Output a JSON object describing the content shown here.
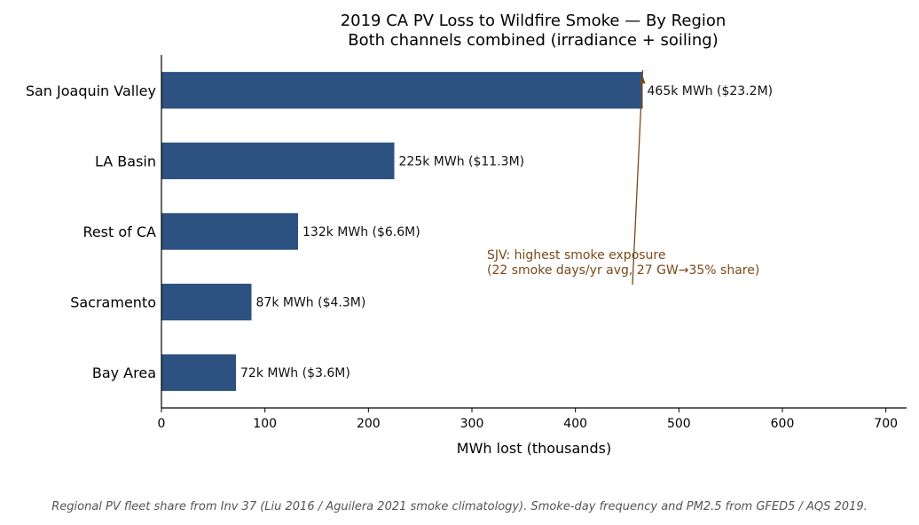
{
  "chart_data": {
    "type": "bar",
    "orientation": "horizontal",
    "title": "2019 CA PV Loss to Wildfire Smoke — By Region",
    "subtitle": "Both channels combined (irradiance + soiling)",
    "xlabel": "MWh lost (thousands)",
    "ylabel": "",
    "categories": [
      "Bay Area",
      "Sacramento",
      "Rest of CA",
      "LA Basin",
      "San Joaquin Valley"
    ],
    "values": [
      72,
      87,
      132,
      225,
      465
    ],
    "data_labels": [
      "72k MWh  ($3.6M)",
      "87k MWh  ($4.3M)",
      "132k MWh  ($6.6M)",
      "225k MWh  ($11.3M)",
      "465k MWh  ($23.2M)"
    ],
    "xlim": [
      0,
      720
    ],
    "xticks": [
      0,
      100,
      200,
      300,
      400,
      500,
      600,
      700
    ],
    "bar_color": "#2d5282",
    "annotation": {
      "lines": [
        "SJV: highest smoke exposure",
        "(22 smoke days/yr avg, 27 GW→35% share)"
      ],
      "color": "#7a4a1a",
      "target_category": "San Joaquin Valley",
      "target_value": 465
    },
    "grid": false,
    "footnote": "Regional PV fleet share from Inv 37 (Liu 2016 / Aguilera 2021 smoke climatology). Smoke-day frequency and PM2.5 from GFED5 / AQS 2019."
  }
}
